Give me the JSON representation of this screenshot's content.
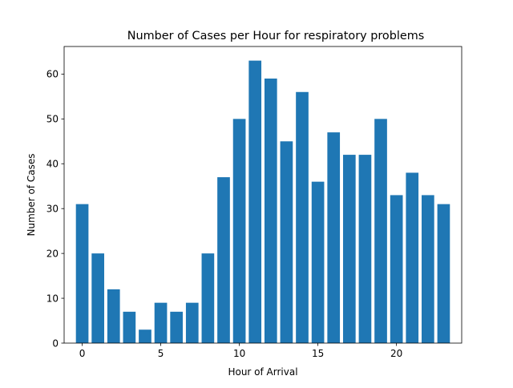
{
  "chart_data": {
    "type": "bar",
    "title": "Number of Cases per Hour for respiratory problems",
    "xlabel": "Hour of Arrival",
    "ylabel": "Number of Cases",
    "categories": [
      0,
      1,
      2,
      3,
      4,
      5,
      6,
      7,
      8,
      9,
      10,
      11,
      12,
      13,
      14,
      15,
      16,
      17,
      18,
      19,
      20,
      21,
      22,
      23
    ],
    "values": [
      31,
      20,
      12,
      7,
      3,
      9,
      7,
      9,
      20,
      37,
      50,
      63,
      59,
      45,
      56,
      36,
      47,
      42,
      42,
      50,
      33,
      38,
      33,
      31
    ],
    "xlim": [
      -1.15,
      24.15
    ],
    "ylim": [
      0,
      66.15
    ],
    "xticks": [
      0,
      5,
      10,
      15,
      20
    ],
    "yticks": [
      0,
      10,
      20,
      30,
      40,
      50,
      60
    ],
    "bar_color": "#1f77b4",
    "grid": false,
    "legend": "none"
  }
}
